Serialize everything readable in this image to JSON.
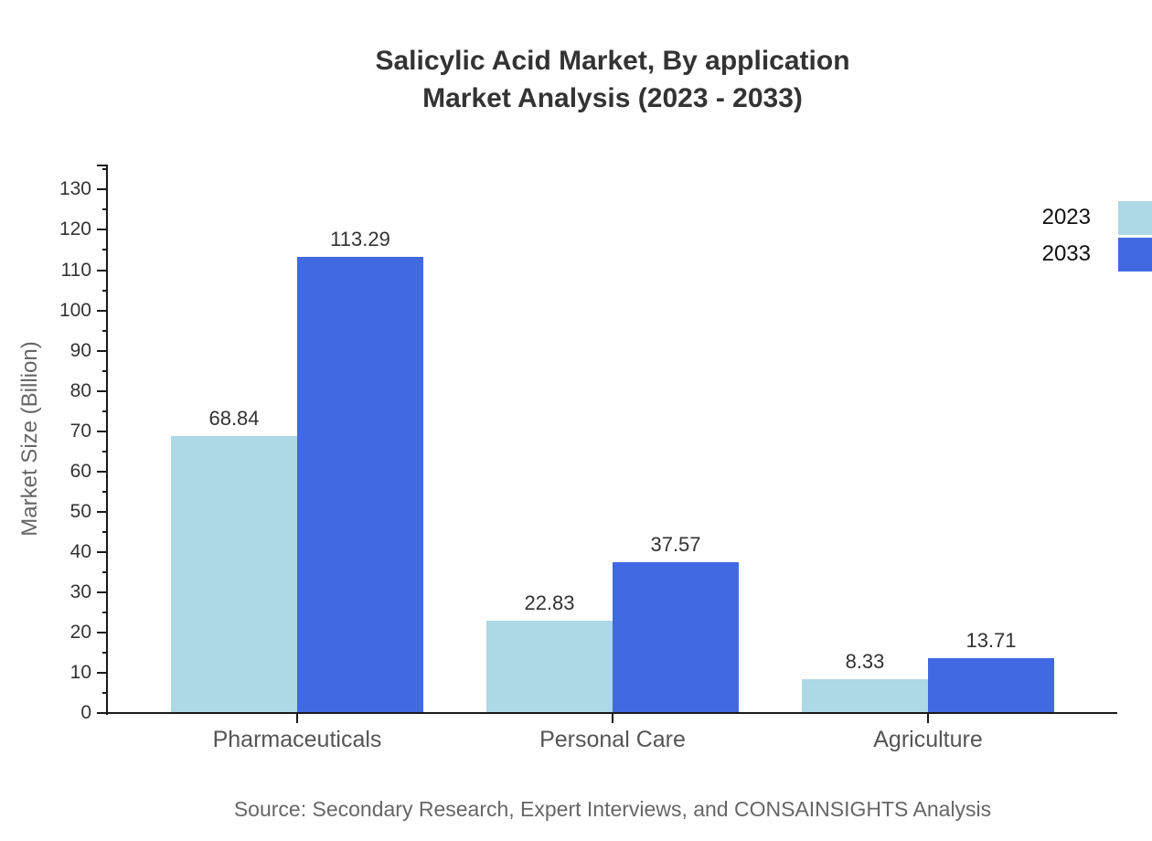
{
  "title": {
    "line1": "Salicylic Acid Market, By application",
    "line2": "Market Analysis (2023 - 2033)"
  },
  "source": "Source: Secondary Research, Expert Interviews, and CONSAINSIGHTS Analysis",
  "legend": {
    "items": [
      {
        "label": "2023",
        "color": "#ADD8E6"
      },
      {
        "label": "2033",
        "color": "#4169E1"
      }
    ]
  },
  "colors": {
    "series_2023": "#ADD8E6",
    "series_2033": "#4169E1",
    "axis": "#1a1a1a",
    "tick_label": "#333333",
    "category_label": "#555555",
    "axis_title": "#666666",
    "value_label": "#333333",
    "title": "#333333",
    "source": "#666666",
    "background": "#ffffff"
  },
  "chart_data": {
    "type": "bar",
    "title": "Salicylic Acid Market, By application Market Analysis (2023 - 2033)",
    "categories": [
      "Pharmaceuticals",
      "Personal Care",
      "Agriculture"
    ],
    "series": [
      {
        "name": "2023",
        "color": "#ADD8E6",
        "values": [
          68.84,
          22.83,
          8.33
        ]
      },
      {
        "name": "2033",
        "color": "#4169E1",
        "values": [
          113.29,
          37.57,
          13.71
        ]
      }
    ],
    "xlabel": "",
    "ylabel": "Market Size (Billion)",
    "ylim": [
      0,
      136
    ],
    "yticks": [
      0,
      10,
      20,
      30,
      40,
      50,
      60,
      70,
      80,
      90,
      100,
      110,
      120,
      130
    ],
    "ytick_minor_step": 5,
    "grid": false,
    "legend_position": "upper-right",
    "value_labels": true
  }
}
